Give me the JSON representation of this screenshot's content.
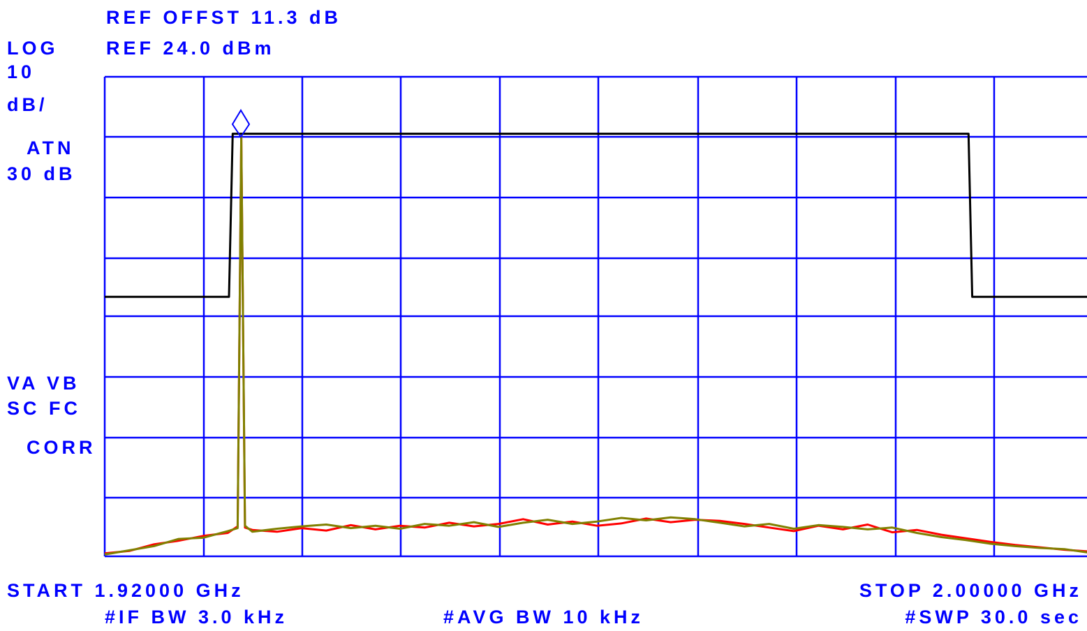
{
  "chart_data": {
    "type": "line",
    "labels": [
      "REF OFFST 11.3 dB",
      "LOG",
      "REF 24.0 dBm",
      "10",
      "dB/",
      "ATN",
      "30 dB",
      "VA VB",
      "SC FC",
      "CORR",
      "START 1.92000 GHz",
      "STOP 2.00000 GHz",
      "#IF BW 3.0 kHz",
      "#AVG BW 10 kHz",
      "#SWP 30.0 sec"
    ],
    "xlim": [
      1.92,
      2.0
    ],
    "ylim": [
      -56,
      24
    ],
    "limit": {
      "color": "#000000",
      "x": [
        1.92,
        1.9301,
        1.9304,
        1.9902,
        1.9905,
        2.0
      ],
      "values": [
        -12.7,
        -12.7,
        14.5,
        14.5,
        -12.7,
        -12.7
      ]
    },
    "x": [
      1.92,
      1.922,
      1.924,
      1.926,
      1.928,
      1.93,
      1.9308,
      1.9311,
      1.9314,
      1.932,
      1.934,
      1.936,
      1.938,
      1.94,
      1.942,
      1.944,
      1.946,
      1.948,
      1.95,
      1.952,
      1.954,
      1.956,
      1.958,
      1.96,
      1.962,
      1.964,
      1.966,
      1.968,
      1.97,
      1.972,
      1.974,
      1.976,
      1.978,
      1.98,
      1.982,
      1.984,
      1.986,
      1.988,
      1.99,
      1.992,
      1.994,
      1.996,
      1.998,
      2.0
    ],
    "series": [
      {
        "color": "#ff0000",
        "values": [
          -55.5,
          -55.1,
          -54.0,
          -53.4,
          -52.6,
          -52.1,
          -51.0,
          14.0,
          -51.2,
          -51.6,
          -51.9,
          -51.3,
          -51.7,
          -50.8,
          -51.5,
          -50.9,
          -51.2,
          -50.4,
          -51.0,
          -50.6,
          -49.8,
          -50.7,
          -50.2,
          -50.9,
          -50.5,
          -49.7,
          -50.3,
          -49.9,
          -50.1,
          -50.6,
          -51.2,
          -51.8,
          -50.9,
          -51.5,
          -50.7,
          -52.0,
          -51.6,
          -52.4,
          -53.0,
          -53.6,
          -54.1,
          -54.5,
          -54.9,
          -55.2
        ]
      },
      {
        "color": "#808000",
        "values": [
          -55.7,
          -55.0,
          -54.3,
          -53.1,
          -52.9,
          -51.8,
          -51.3,
          14.0,
          -50.9,
          -51.9,
          -51.4,
          -51.0,
          -50.7,
          -51.3,
          -50.9,
          -51.4,
          -50.6,
          -50.9,
          -50.3,
          -51.1,
          -50.4,
          -49.9,
          -50.6,
          -50.2,
          -49.6,
          -50.0,
          -49.5,
          -49.8,
          -50.4,
          -51.0,
          -50.6,
          -51.4,
          -50.8,
          -51.1,
          -51.5,
          -51.2,
          -52.1,
          -52.8,
          -53.3,
          -53.9,
          -54.3,
          -54.6,
          -54.8,
          -55.4
        ]
      }
    ]
  }
}
